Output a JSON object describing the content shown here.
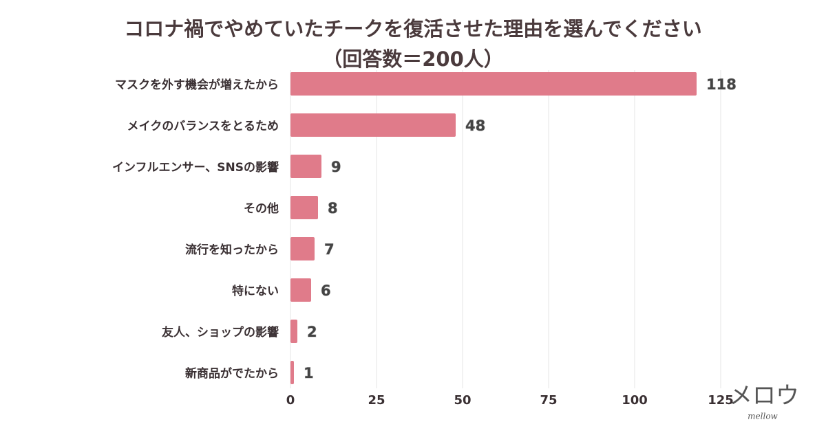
{
  "chart_data": {
    "type": "bar",
    "orientation": "horizontal",
    "title": "コロナ禍でやめていたチークを復活させた理由を選んでください",
    "subtitle": "（回答数＝200人）",
    "categories": [
      "マスクを外す機会が増えたから",
      "メイクのバランスをとるため",
      "インフルエンサー、SNSの影響",
      "その他",
      "流行を知ったから",
      "特にない",
      "友人、ショップの影響",
      "新商品がでたから"
    ],
    "values": [
      118,
      48,
      9,
      8,
      7,
      6,
      2,
      1
    ],
    "color": "#e07b8a",
    "xlim": [
      0,
      125
    ],
    "xticks": [
      0,
      25,
      50,
      75,
      100,
      125
    ],
    "grid": true,
    "watermark": {
      "text": "メロウ",
      "subtext": "mellow"
    }
  }
}
